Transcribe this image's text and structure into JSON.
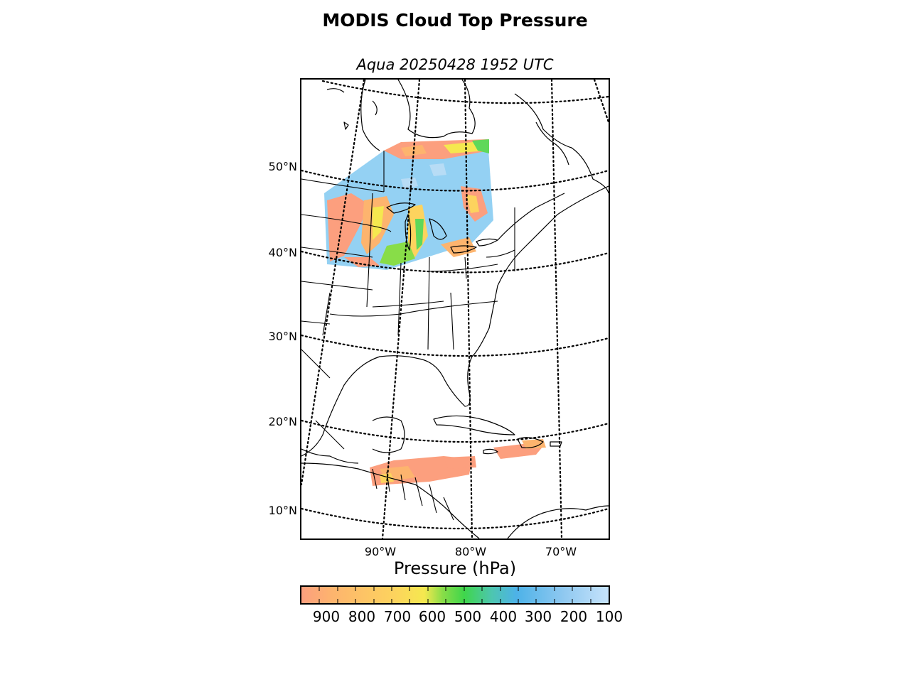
{
  "header": {
    "title": "MODIS Cloud Top Pressure",
    "subtitle": "Aqua 20250428 1952 UTC"
  },
  "map": {
    "projection": "conic",
    "lat_labels": [
      "50°N",
      "40°N",
      "30°N",
      "20°N",
      "10°N"
    ],
    "lon_labels": [
      "90°W",
      "80°W",
      "70°W"
    ],
    "graticule_style": "dotted",
    "coastline_color": "#000000",
    "cloud_regions": [
      {
        "region": "Great Lakes / Upper Midwest",
        "dominant_pressure_hPa": 300
      },
      {
        "region": "Central America / Caribbean",
        "dominant_pressure_hPa": 850
      }
    ]
  },
  "colorbar": {
    "label": "Pressure (hPa)",
    "ticks": [
      "900",
      "800",
      "700",
      "600",
      "500",
      "400",
      "300",
      "200",
      "100"
    ],
    "range": [
      975,
      100
    ],
    "colors": [
      "#fc9f7e",
      "#fdb46e",
      "#fdd35e",
      "#f5e84f",
      "#88dd48",
      "#3fd64b",
      "#4dc6b0",
      "#4db2e8",
      "#8ec8f0",
      "#c6e3fb"
    ]
  }
}
